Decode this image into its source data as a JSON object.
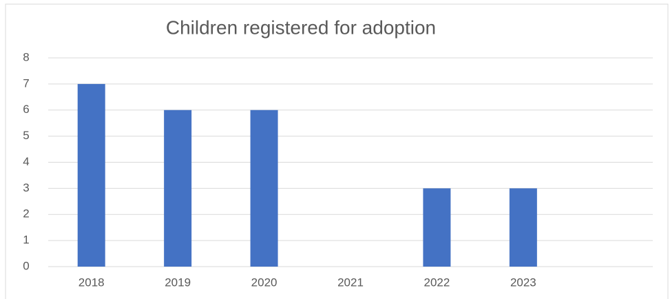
{
  "chart_data": {
    "type": "bar",
    "title": "Children registered for adoption",
    "categories": [
      "2018",
      "2019",
      "2020",
      "2021",
      "2022",
      "2023",
      null
    ],
    "values": [
      7,
      6,
      6,
      0,
      3,
      3,
      null
    ],
    "color": "#4472c4",
    "ylim": [
      0,
      8
    ],
    "yticks": [
      0,
      1,
      2,
      3,
      4,
      5,
      6,
      7,
      8
    ],
    "grid": true
  }
}
